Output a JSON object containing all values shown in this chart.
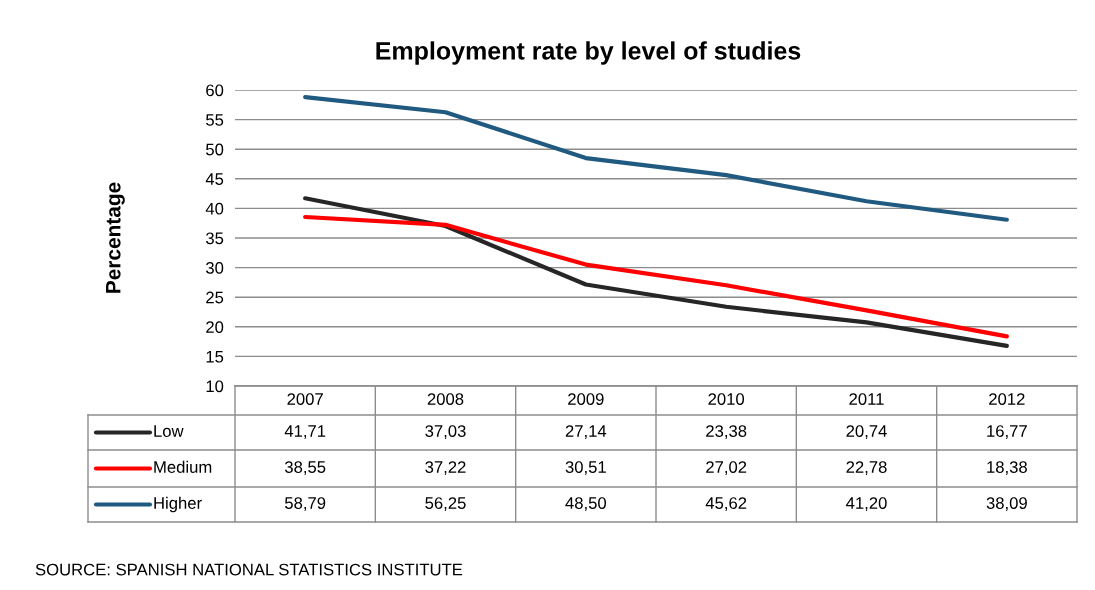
{
  "chart_data": {
    "type": "line",
    "title": "Employment rate by level of studies",
    "ylabel": "Percentage",
    "categories": [
      "2007",
      "2008",
      "2009",
      "2010",
      "2011",
      "2012"
    ],
    "series": [
      {
        "name": "Low",
        "color": "#262626",
        "values": [
          41.71,
          37.03,
          27.14,
          23.38,
          20.74,
          16.77
        ],
        "value_labels": [
          "41,71",
          "37,03",
          "27,14",
          "23,38",
          "20,74",
          "16,77"
        ]
      },
      {
        "name": "Medium",
        "color": "#ff0000",
        "values": [
          38.55,
          37.22,
          30.51,
          27.02,
          22.78,
          18.38
        ],
        "value_labels": [
          "38,55",
          "37,22",
          "30,51",
          "27,02",
          "22,78",
          "18,38"
        ]
      },
      {
        "name": "Higher",
        "color": "#215a80",
        "values": [
          58.79,
          56.25,
          48.5,
          45.62,
          41.2,
          38.09
        ],
        "value_labels": [
          "58,79",
          "56,25",
          "48,50",
          "45,62",
          "41,20",
          "38,09"
        ]
      }
    ],
    "ylim": [
      10,
      60
    ],
    "yticks": [
      10,
      15,
      20,
      25,
      30,
      35,
      40,
      45,
      50,
      55,
      60
    ],
    "grid": "y",
    "legend": "bottom left",
    "line_style": "solid",
    "marker": "none",
    "annotations": [
      "SOURCE: SPANISH NATIONAL STATISTICS INSTITUTE"
    ]
  }
}
